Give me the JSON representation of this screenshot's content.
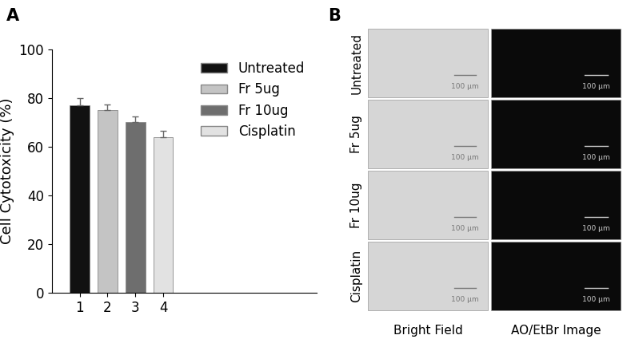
{
  "panel_labels": [
    "A",
    "B"
  ],
  "chart_data": {
    "type": "bar",
    "y_label": "Cell Cytotoxicity (%)",
    "categories": [
      "1",
      "2",
      "3",
      "4"
    ],
    "series": [
      {
        "name": "Untreated",
        "color": "#111111",
        "values": [
          77,
          null,
          null,
          null
        ],
        "error": [
          3,
          null,
          null,
          null
        ]
      },
      {
        "name": "Fr 5ug",
        "color": "#c4c4c4",
        "values": [
          null,
          75,
          null,
          null
        ],
        "error": [
          null,
          2.5,
          null,
          null
        ]
      },
      {
        "name": "Fr 10ug",
        "color": "#6e6e6e",
        "values": [
          null,
          null,
          70,
          null
        ],
        "error": [
          null,
          null,
          2.5,
          null
        ]
      },
      {
        "name": "Cisplatin",
        "color": "#e2e2e2",
        "values": [
          null,
          null,
          null,
          64
        ],
        "error": [
          null,
          null,
          null,
          2.5
        ]
      }
    ],
    "ylim": [
      0,
      100
    ],
    "yticks": [
      0,
      20,
      40,
      60,
      80,
      100
    ],
    "grid": false,
    "legend": "upper right"
  },
  "image_grid": {
    "rows": [
      "Untreated",
      "Fr 5ug",
      "Fr 10ug",
      "Cisplatin"
    ],
    "columns": [
      "Bright Field",
      "AO/EtBr Image"
    ],
    "scale_bar": "100 µm"
  }
}
